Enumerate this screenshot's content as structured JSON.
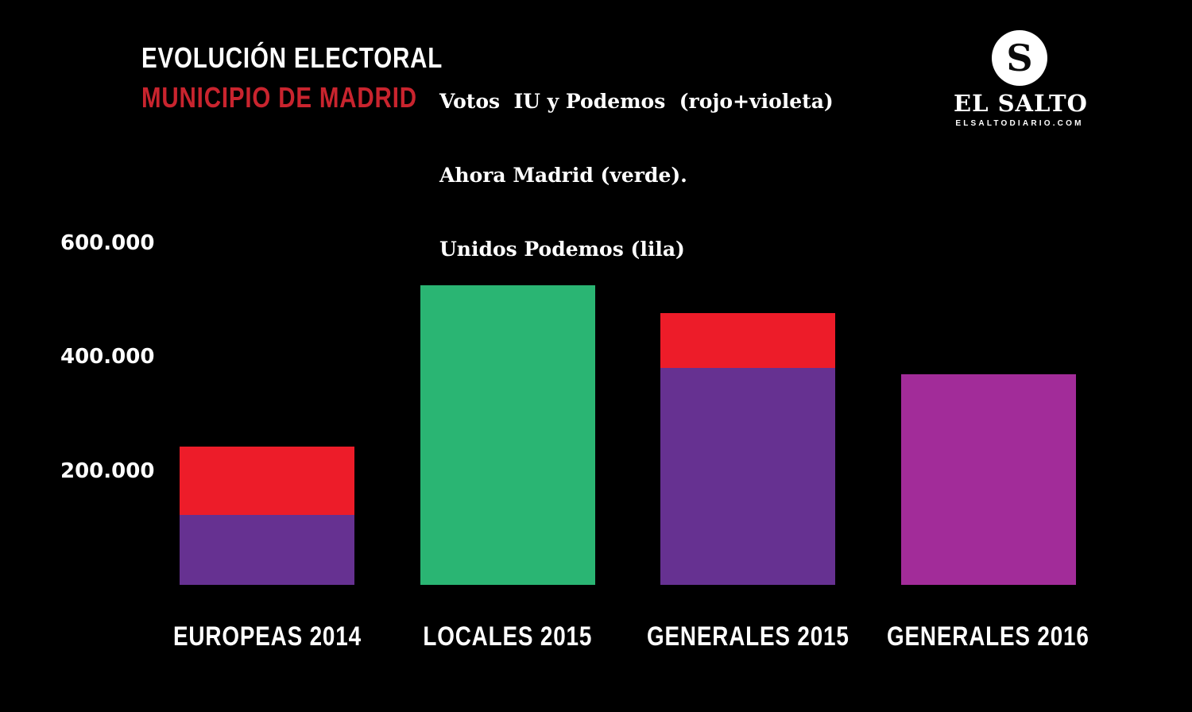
{
  "header": {
    "title_line1": "EVOLUCIÓN ELECTORAL",
    "title_line2": "MUNICIPIO DE MADRID"
  },
  "legend": {
    "lines": [
      "Votos  IU y Podemos  (rojo+violeta)",
      "Ahora Madrid (verde).",
      "Unidos Podemos (lila)"
    ]
  },
  "logo": {
    "initial": "S",
    "name": "EL SALTO",
    "site": "ELSALTODIARIO.COM"
  },
  "colors": {
    "background": "#000000",
    "text": "#ffffff",
    "title_red": "#c9242e",
    "rojo": "#ed1c29",
    "violeta": "#663191",
    "verde": "#2ab573",
    "lila": "#a22c99"
  },
  "chart_data": {
    "type": "bar",
    "stacked": true,
    "title": "EVOLUCIÓN ELECTORAL — MUNICIPIO DE MADRID",
    "categories": [
      "EUROPEAS 2014",
      "LOCALES 2015",
      "GENERALES 2015",
      "GENERALES 2016"
    ],
    "series": [
      {
        "name": "Podemos (violeta)",
        "color": "#663191",
        "values": [
          122000,
          0,
          381000,
          0
        ]
      },
      {
        "name": "IU (rojo)",
        "color": "#ed1c29",
        "values": [
          121000,
          0,
          96000,
          0
        ]
      },
      {
        "name": "Ahora Madrid (verde)",
        "color": "#2ab573",
        "values": [
          0,
          525000,
          0,
          0
        ]
      },
      {
        "name": "Unidos Podemos (lila)",
        "color": "#a22c99",
        "values": [
          0,
          0,
          0,
          370000
        ]
      }
    ],
    "yticks": [
      {
        "label": "600.000",
        "value": 600000
      },
      {
        "label": "400.000",
        "value": 400000
      },
      {
        "label": "200.000",
        "value": 200000
      }
    ],
    "ylabel": "",
    "xlabel": "",
    "ylim": [
      0,
      650000
    ],
    "grid": false,
    "legend_position": "top"
  }
}
